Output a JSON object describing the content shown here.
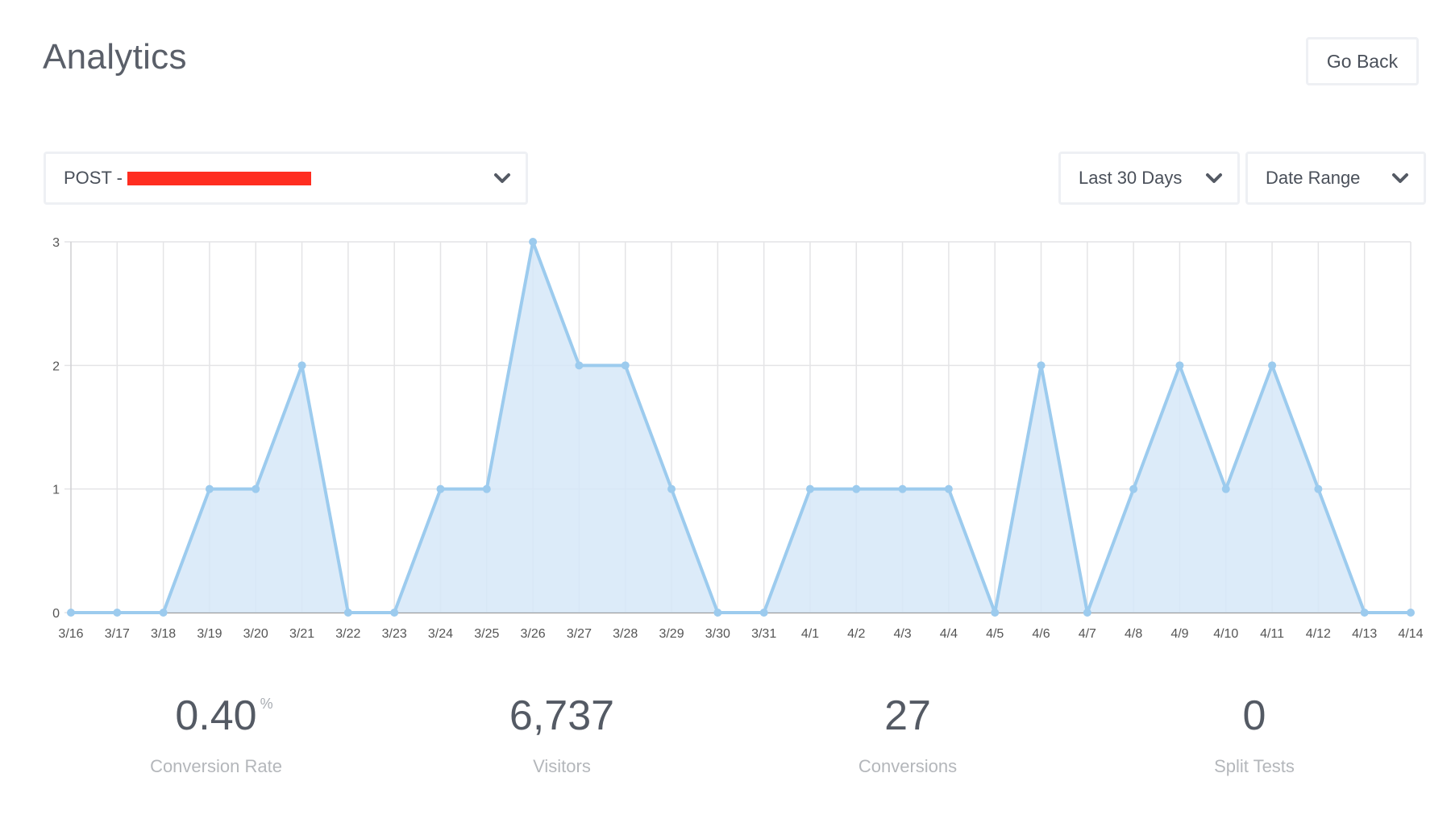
{
  "header": {
    "title": "Analytics",
    "back_button": "Go Back"
  },
  "filters": {
    "post_select": {
      "prefix": "POST -",
      "value_redacted": true,
      "icon": "chevron-down-icon"
    },
    "period_select": {
      "value": "Last 30 Days",
      "icon": "chevron-down-icon"
    },
    "date_range_select": {
      "value": "Date Range",
      "icon": "chevron-down-icon"
    }
  },
  "colors": {
    "line": "#9ccbee",
    "fill": "#d6e8f8",
    "grid": "#e4e4e6",
    "axis": "#9a9a9a",
    "text": "#545a64",
    "muted": "#b4b7bb",
    "redaction": "#ff2d20"
  },
  "chart_data": {
    "type": "area",
    "title": "",
    "xlabel": "",
    "ylabel": "",
    "categories": [
      "3/16",
      "3/17",
      "3/18",
      "3/19",
      "3/20",
      "3/21",
      "3/22",
      "3/23",
      "3/24",
      "3/25",
      "3/26",
      "3/27",
      "3/28",
      "3/29",
      "3/30",
      "3/31",
      "4/1",
      "4/2",
      "4/3",
      "4/4",
      "4/5",
      "4/6",
      "4/7",
      "4/8",
      "4/9",
      "4/10",
      "4/11",
      "4/12",
      "4/13",
      "4/14"
    ],
    "values": [
      0,
      0,
      0,
      1,
      1,
      2,
      0,
      0,
      1,
      1,
      3,
      2,
      2,
      1,
      0,
      0,
      1,
      1,
      1,
      1,
      0,
      2,
      0,
      1,
      2,
      1,
      2,
      1,
      0,
      0
    ],
    "yticks": [
      0,
      1,
      2,
      3
    ],
    "ylim": [
      0,
      3
    ],
    "grid": true,
    "legend": null
  },
  "stats": [
    {
      "value": "0.40",
      "unit": "%",
      "label": "Conversion Rate"
    },
    {
      "value": "6,737",
      "unit": "",
      "label": "Visitors"
    },
    {
      "value": "27",
      "unit": "",
      "label": "Conversions"
    },
    {
      "value": "0",
      "unit": "",
      "label": "Split Tests"
    }
  ]
}
